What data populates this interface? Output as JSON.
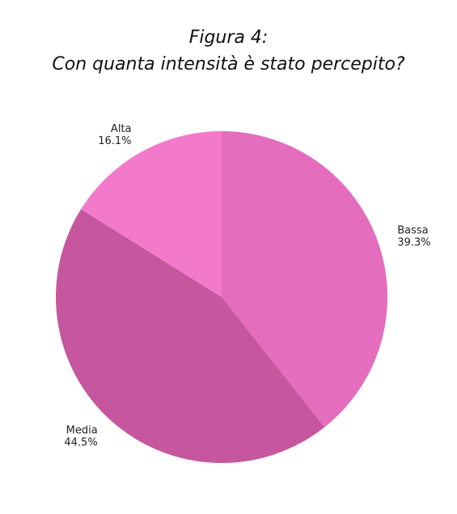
{
  "chart_data": {
    "type": "pie",
    "title_line1": "Figura 4:",
    "title_line2": "Con quanta intensità è stato percepito?",
    "slices": [
      {
        "label": "Bassa",
        "value": 39.3,
        "value_label": "39.3%",
        "color": "#E46DBE"
      },
      {
        "label": "Media",
        "value": 44.5,
        "value_label": "44.5%",
        "color": "#C6579F"
      },
      {
        "label": "Alta",
        "value": 16.1,
        "value_label": "16.1%",
        "color": "#F37ACB"
      }
    ],
    "start_angle_deg": 0,
    "direction": "clockwise",
    "legend": "none"
  }
}
